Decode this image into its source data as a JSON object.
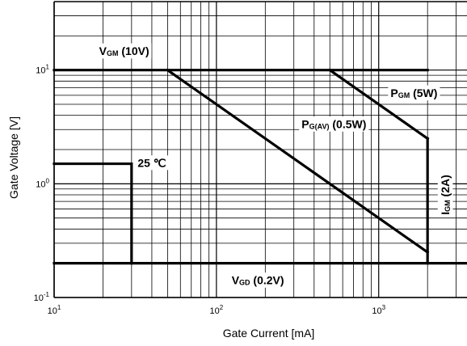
{
  "chart_data": {
    "type": "line",
    "title": "",
    "xlabel": "Gate Current [mA]",
    "ylabel": "Gate Voltage [V]",
    "xscale": "log",
    "yscale": "log",
    "xlim": [
      10,
      3500
    ],
    "ylim": [
      0.1,
      40
    ],
    "grid": true,
    "x_ticks": [
      {
        "value": 10,
        "base": "10",
        "exp": "1"
      },
      {
        "value": 100,
        "base": "10",
        "exp": "2"
      },
      {
        "value": 1000,
        "base": "10",
        "exp": "3"
      }
    ],
    "y_ticks": [
      {
        "value": 0.1,
        "base": "10",
        "exp": "-1"
      },
      {
        "value": 1,
        "base": "10",
        "exp": "0"
      },
      {
        "value": 10,
        "base": "10",
        "exp": "1"
      }
    ],
    "series": [
      {
        "x": [
          10,
          2000
        ],
        "y": [
          10,
          10
        ]
      },
      {
        "x": [
          500,
          2000
        ],
        "y": [
          10,
          2.5
        ]
      },
      {
        "x": [
          50,
          2000
        ],
        "y": [
          10,
          0.25
        ]
      },
      {
        "x": [
          2000,
          2000
        ],
        "y": [
          2.5,
          0.2
        ]
      },
      {
        "x": [
          10,
          3500
        ],
        "y": [
          0.2,
          0.2
        ]
      },
      {
        "x": [
          10,
          30,
          30
        ],
        "y": [
          1.5,
          1.5,
          0.2
        ]
      }
    ],
    "annotations": [
      {
        "main": "V",
        "sub": "GM",
        "rest": " (10V)",
        "x": 27,
        "y": 14.5,
        "anchor": "middle",
        "rot": 0
      },
      {
        "main": "P",
        "sub": "GM",
        "rest": " (5W)",
        "x": 1650,
        "y": 6.2,
        "anchor": "middle",
        "rot": 0
      },
      {
        "main": "P",
        "sub": "G(AV)",
        "rest": " (0.5W)",
        "x": 530,
        "y": 3.3,
        "anchor": "middle",
        "rot": 0
      },
      {
        "main": "",
        "sub": "",
        "rest": "25 ℃",
        "x": 40,
        "y": 1.5,
        "anchor": "middle",
        "rot": 0
      },
      {
        "main": "I",
        "sub": "GM",
        "rest": " (2A)",
        "x": 2600,
        "y": 0.8,
        "anchor": "middle",
        "rot": -90
      },
      {
        "main": "V",
        "sub": "GD",
        "rest": " (0.2V)",
        "x": 180,
        "y": 0.14,
        "anchor": "middle",
        "rot": 0
      }
    ]
  }
}
